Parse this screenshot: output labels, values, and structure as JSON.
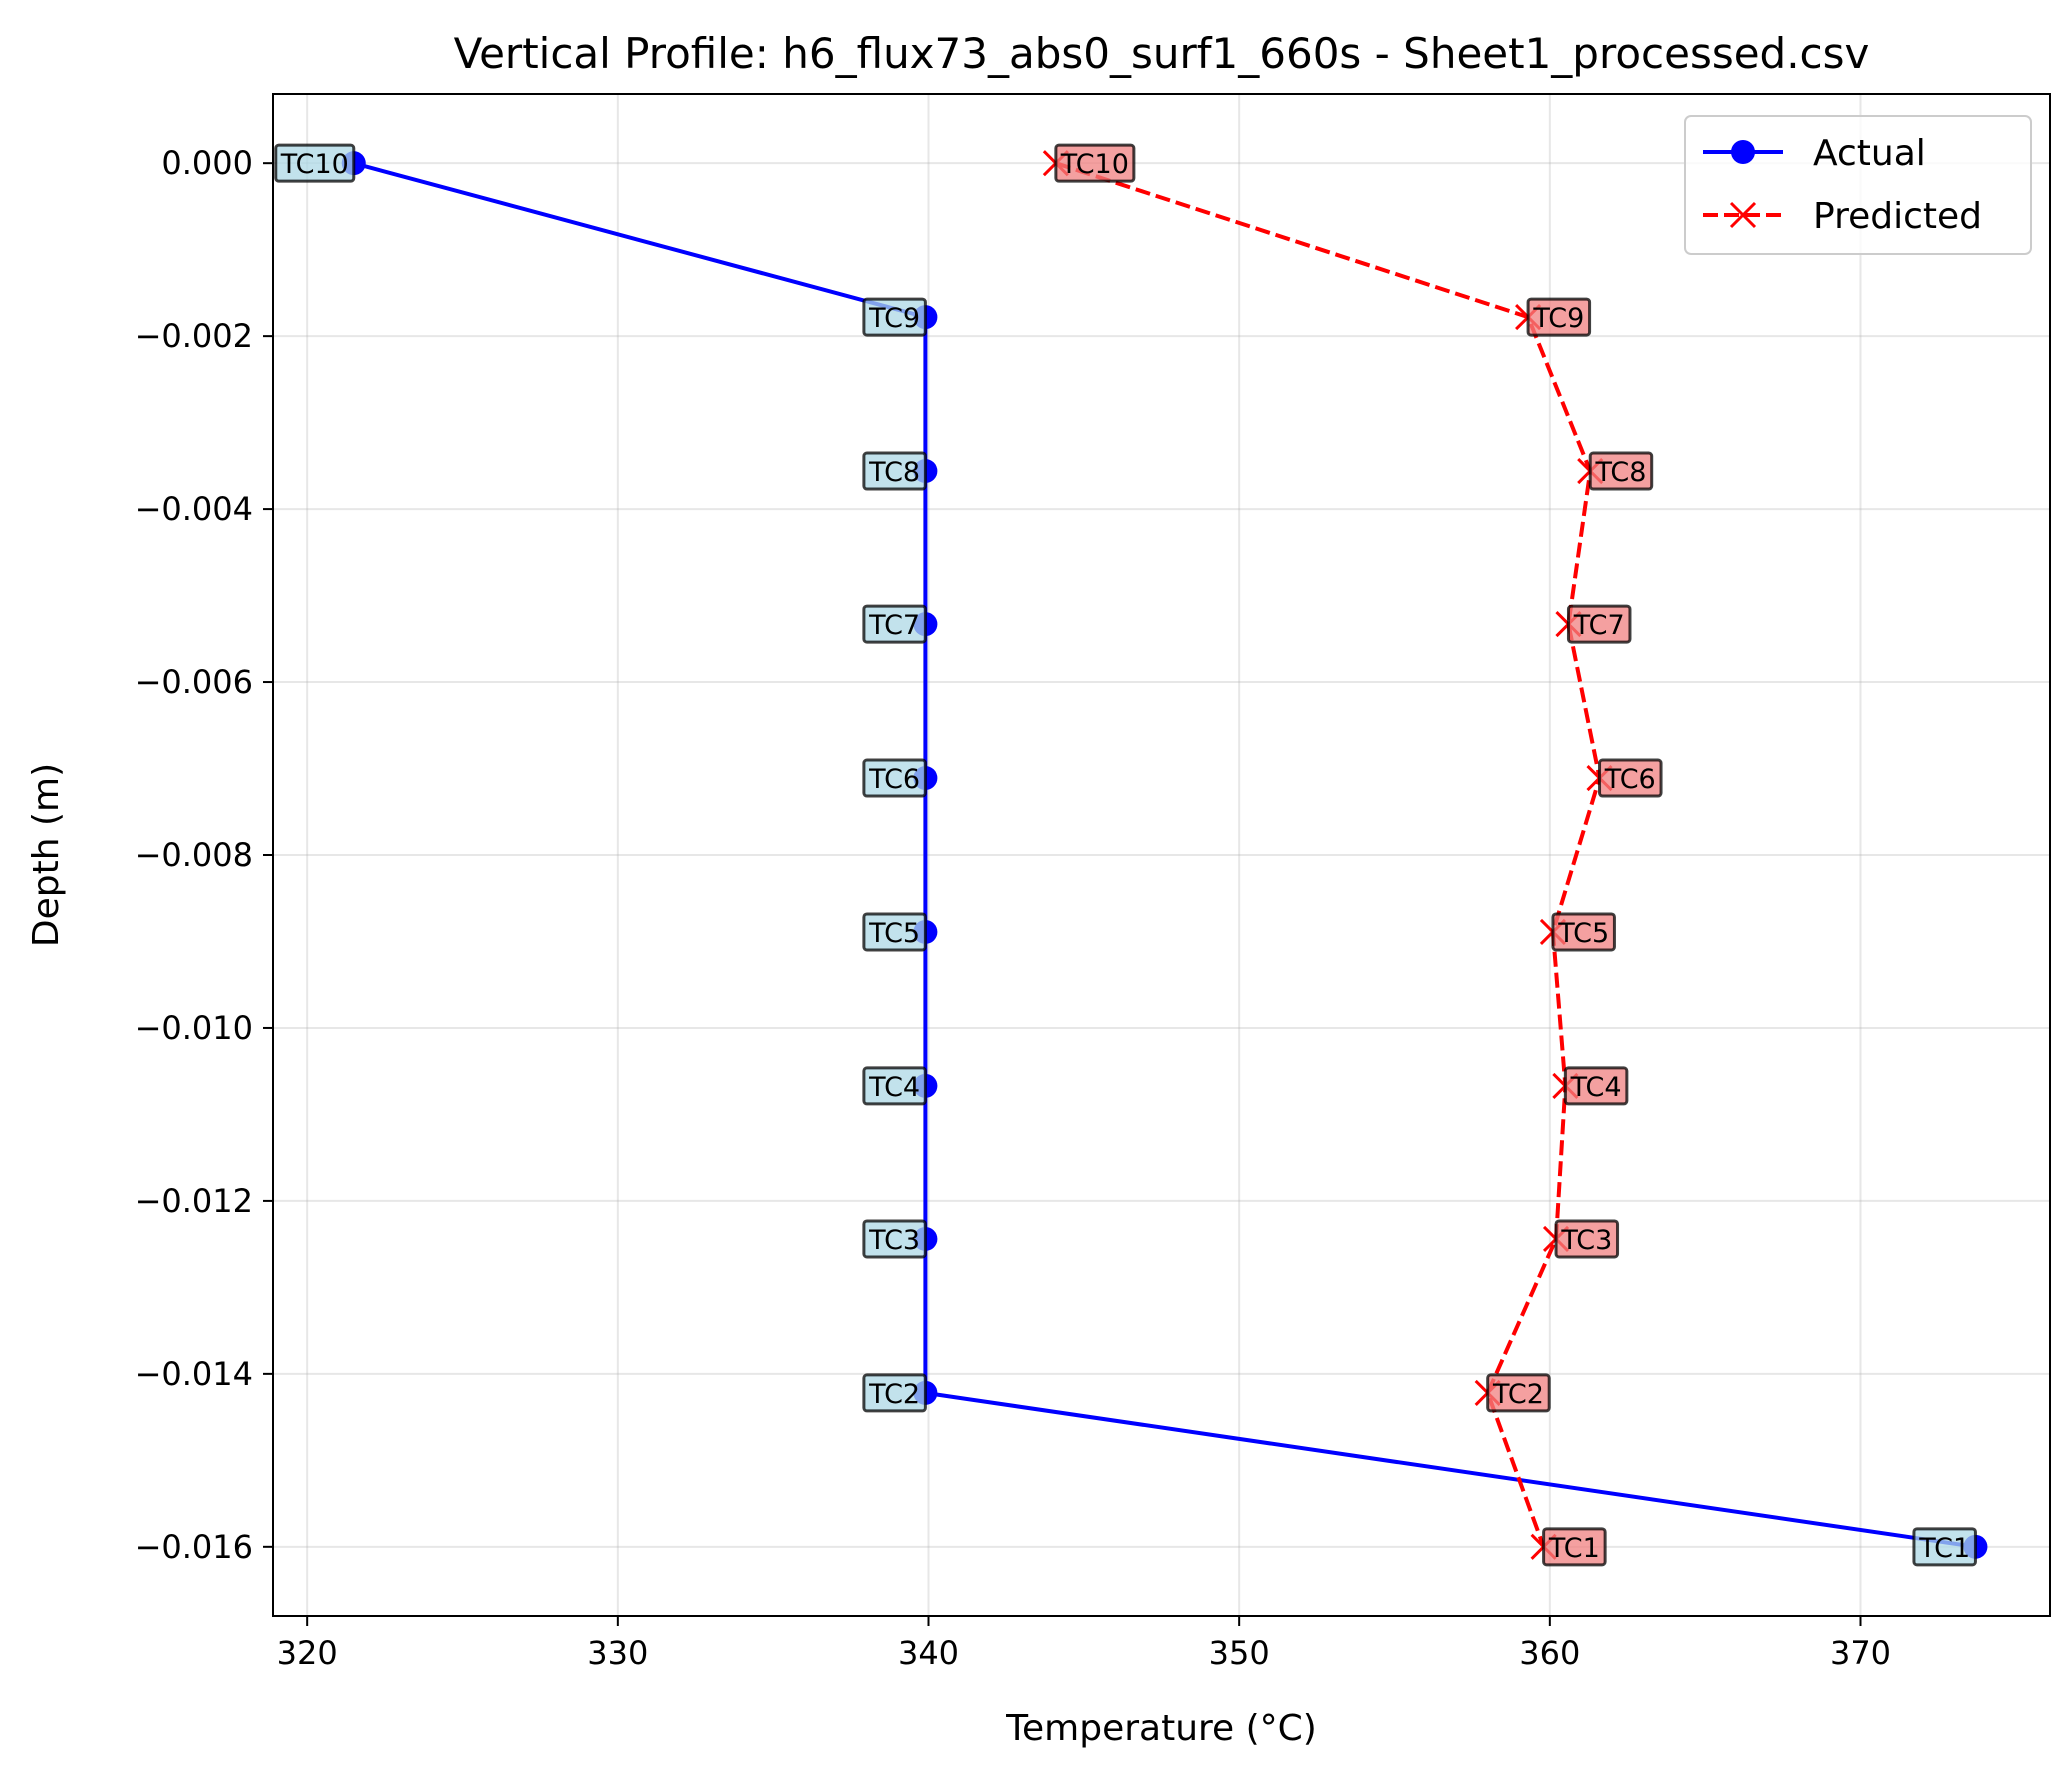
{
  "chart_data": {
    "type": "line",
    "title": "Vertical Profile: h6_flux73_abs0_surf1_660s - Sheet1_processed.csv",
    "xlabel": "Temperature (°C)",
    "ylabel": "Depth (m)",
    "xlim": [
      318.9,
      376.1
    ],
    "ylim": [
      -0.0168,
      0.0008
    ],
    "xticks": [
      320,
      330,
      340,
      350,
      360,
      370
    ],
    "xtick_labels": [
      "320",
      "330",
      "340",
      "350",
      "360",
      "370"
    ],
    "yticks": [
      0.0,
      -0.002,
      -0.004,
      -0.006,
      -0.008,
      -0.01,
      -0.012,
      -0.014,
      -0.016
    ],
    "ytick_labels": [
      "0.000",
      "−0.002",
      "−0.004",
      "−0.006",
      "−0.008",
      "−0.010",
      "−0.012",
      "−0.014",
      "−0.016"
    ],
    "grid": true,
    "legend_position": "top-right",
    "series": [
      {
        "name": "Actual",
        "color": "#0000ff",
        "marker": "circle",
        "linestyle": "solid",
        "label_bg": "#add8e6",
        "points": [
          {
            "label": "TC10",
            "x": 321.5,
            "y": 0.0
          },
          {
            "label": "TC9",
            "x": 339.9,
            "y": -0.00178
          },
          {
            "label": "TC8",
            "x": 339.9,
            "y": -0.00356
          },
          {
            "label": "TC7",
            "x": 339.9,
            "y": -0.00533
          },
          {
            "label": "TC6",
            "x": 339.9,
            "y": -0.00711
          },
          {
            "label": "TC5",
            "x": 339.9,
            "y": -0.00889
          },
          {
            "label": "TC4",
            "x": 339.9,
            "y": -0.01067
          },
          {
            "label": "TC3",
            "x": 339.9,
            "y": -0.01244
          },
          {
            "label": "TC2",
            "x": 339.9,
            "y": -0.01422
          },
          {
            "label": "TC1",
            "x": 373.7,
            "y": -0.016
          }
        ]
      },
      {
        "name": "Predicted",
        "color": "#ff0000",
        "marker": "x",
        "linestyle": "dashed",
        "label_bg": "#f08080",
        "points": [
          {
            "label": "TC10",
            "x": 344.1,
            "y": 0.0
          },
          {
            "label": "TC9",
            "x": 359.3,
            "y": -0.00178
          },
          {
            "label": "TC8",
            "x": 361.3,
            "y": -0.00356
          },
          {
            "label": "TC7",
            "x": 360.6,
            "y": -0.00533
          },
          {
            "label": "TC6",
            "x": 361.6,
            "y": -0.00711
          },
          {
            "label": "TC5",
            "x": 360.1,
            "y": -0.00889
          },
          {
            "label": "TC4",
            "x": 360.5,
            "y": -0.01067
          },
          {
            "label": "TC3",
            "x": 360.2,
            "y": -0.01244
          },
          {
            "label": "TC2",
            "x": 358.0,
            "y": -0.01422
          },
          {
            "label": "TC1",
            "x": 359.8,
            "y": -0.016
          }
        ]
      }
    ]
  }
}
